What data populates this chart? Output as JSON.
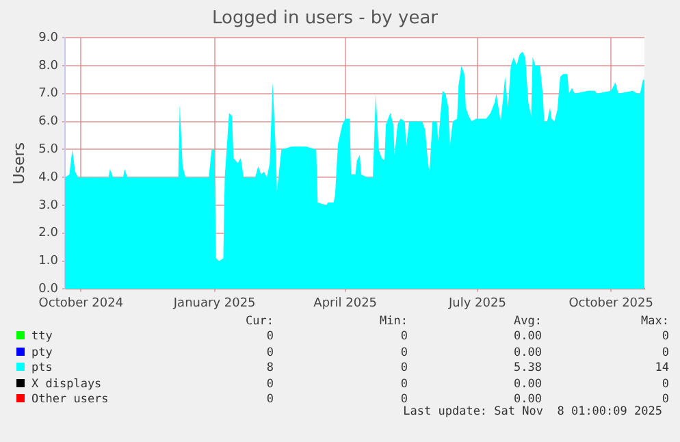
{
  "chart_data": {
    "type": "area",
    "title": "Logged in users - by year",
    "ylabel": "Users",
    "xlim": [
      "2024-10-05",
      "2025-11-08"
    ],
    "xticks": [
      {
        "value": "2024-10-16",
        "label": "October 2024"
      },
      {
        "value": "2025-01-16",
        "label": "January 2025"
      },
      {
        "value": "2025-04-16",
        "label": "April 2025"
      },
      {
        "value": "2025-07-16",
        "label": "July 2025"
      },
      {
        "value": "2025-10-16",
        "label": "October 2025"
      }
    ],
    "ylim": [
      0,
      9
    ],
    "yticks": [
      {
        "value": 0,
        "label": "0.0"
      },
      {
        "value": 1,
        "label": "1.0"
      },
      {
        "value": 2,
        "label": "2.0"
      },
      {
        "value": 3,
        "label": "3.0"
      },
      {
        "value": 4,
        "label": "4.0"
      },
      {
        "value": 5,
        "label": "5.0"
      },
      {
        "value": 6,
        "label": "6.0"
      },
      {
        "value": 7,
        "label": "7.0"
      },
      {
        "value": 8,
        "label": "8.0"
      },
      {
        "value": 9,
        "label": "9.0"
      }
    ],
    "grid": true,
    "legend": "bottom",
    "series": [
      {
        "name": "tty",
        "color": "#00ff00"
      },
      {
        "name": "pty",
        "color": "#0000ff"
      },
      {
        "name": "pts",
        "color": "#00ffff",
        "x": [
          "2024-10-05",
          "2024-10-08",
          "2024-10-10",
          "2024-10-12",
          "2024-10-14",
          "2024-11-04",
          "2024-11-05",
          "2024-11-07",
          "2024-11-14",
          "2024-11-15",
          "2024-11-17",
          "2024-12-22",
          "2024-12-23",
          "2024-12-25",
          "2024-12-27",
          "2025-01-12",
          "2025-01-14",
          "2025-01-16",
          "2025-01-17",
          "2025-01-19",
          "2025-01-22",
          "2025-01-23",
          "2025-01-26",
          "2025-01-28",
          "2025-01-29",
          "2025-02-01",
          "2025-02-03",
          "2025-02-05",
          "2025-02-13",
          "2025-02-15",
          "2025-02-17",
          "2025-02-19",
          "2025-02-21",
          "2025-02-23",
          "2025-02-25",
          "2025-02-27",
          "2025-02-28",
          "2025-03-03",
          "2025-03-10",
          "2025-03-20",
          "2025-03-27",
          "2025-03-28",
          "2025-04-03",
          "2025-04-04",
          "2025-04-08",
          "2025-04-09",
          "2025-04-11",
          "2025-04-14",
          "2025-04-16",
          "2025-04-19",
          "2025-04-20",
          "2025-04-23",
          "2025-04-24",
          "2025-04-26",
          "2025-04-27",
          "2025-05-01",
          "2025-05-05",
          "2025-05-07",
          "2025-05-09",
          "2025-05-11",
          "2025-05-13",
          "2025-05-14",
          "2025-05-17",
          "2025-05-19",
          "2025-05-20",
          "2025-05-22",
          "2025-05-24",
          "2025-05-27",
          "2025-05-28",
          "2025-05-30",
          "2025-06-08",
          "2025-06-10",
          "2025-06-12",
          "2025-06-13",
          "2025-06-15",
          "2025-06-18",
          "2025-06-19",
          "2025-06-22",
          "2025-06-24",
          "2025-06-26",
          "2025-06-27",
          "2025-06-29",
          "2025-07-02",
          "2025-07-03",
          "2025-07-05",
          "2025-07-07",
          "2025-07-08",
          "2025-07-10",
          "2025-07-12",
          "2025-07-15",
          "2025-07-22",
          "2025-07-25",
          "2025-07-28",
          "2025-07-29",
          "2025-08-01",
          "2025-08-03",
          "2025-08-04",
          "2025-08-06",
          "2025-08-08",
          "2025-08-10",
          "2025-08-12",
          "2025-08-14",
          "2025-08-16",
          "2025-08-18",
          "2025-08-20",
          "2025-08-22",
          "2025-08-23",
          "2025-08-25",
          "2025-08-28",
          "2025-08-30",
          "2025-08-31",
          "2025-09-02",
          "2025-09-04",
          "2025-09-05",
          "2025-09-07",
          "2025-09-09",
          "2025-09-11",
          "2025-09-13",
          "2025-09-16",
          "2025-09-17",
          "2025-09-19",
          "2025-09-21",
          "2025-09-30",
          "2025-10-05",
          "2025-10-06",
          "2025-10-16",
          "2025-10-19",
          "2025-10-21",
          "2025-10-31",
          "2025-11-03",
          "2025-11-05",
          "2025-11-07",
          "2025-11-08"
        ],
        "values": [
          4.0,
          4.1,
          5.0,
          4.2,
          4.0,
          4.0,
          4.3,
          4.0,
          4.0,
          4.3,
          4.0,
          4.0,
          6.6,
          4.4,
          4.0,
          4.0,
          5.0,
          5.0,
          1.1,
          1.0,
          1.1,
          4.0,
          6.3,
          6.2,
          4.7,
          4.5,
          4.7,
          4.0,
          4.0,
          4.4,
          4.1,
          4.2,
          4.0,
          4.5,
          7.4,
          5.1,
          3.5,
          5.0,
          5.1,
          5.1,
          5.0,
          3.1,
          3.0,
          3.1,
          3.1,
          3.4,
          5.2,
          5.9,
          6.1,
          6.1,
          4.1,
          4.1,
          4.6,
          4.8,
          4.1,
          4.0,
          4.0,
          7.0,
          5.0,
          4.7,
          4.6,
          5.9,
          6.3,
          5.9,
          4.8,
          5.9,
          6.1,
          6.0,
          5.1,
          6.0,
          6.0,
          5.7,
          4.5,
          4.2,
          6.0,
          6.0,
          5.3,
          7.1,
          7.0,
          6.5,
          5.1,
          6.0,
          6.1,
          7.3,
          8.0,
          7.7,
          6.5,
          6.2,
          6.0,
          6.1,
          6.1,
          6.3,
          6.7,
          7.0,
          6.0,
          7.0,
          7.6,
          6.5,
          8.0,
          8.3,
          8.0,
          8.4,
          8.5,
          8.3,
          6.7,
          6.2,
          8.3,
          8.0,
          8.0,
          7.0,
          6.0,
          6.0,
          6.5,
          6.1,
          6.0,
          6.4,
          7.6,
          7.7,
          7.7,
          7.0,
          7.2,
          7.0,
          7.1,
          7.1,
          7.0,
          7.1,
          7.4,
          7.0,
          7.1,
          7.0,
          7.0,
          7.5,
          7.5
        ]
      },
      {
        "name": "X displays",
        "color": "#000000"
      },
      {
        "name": "Other users",
        "color": "#ff0000"
      }
    ],
    "annotations": [
      "Cur: Min: Avg: Max:",
      "0 0 0.00 0",
      "0 0 0.00 0",
      "8 0 5.38 14",
      "0 0 0.00 0",
      "0 0 0.00 0",
      "Last update: Sat Nov  8 01:00:09 2025"
    ]
  }
}
